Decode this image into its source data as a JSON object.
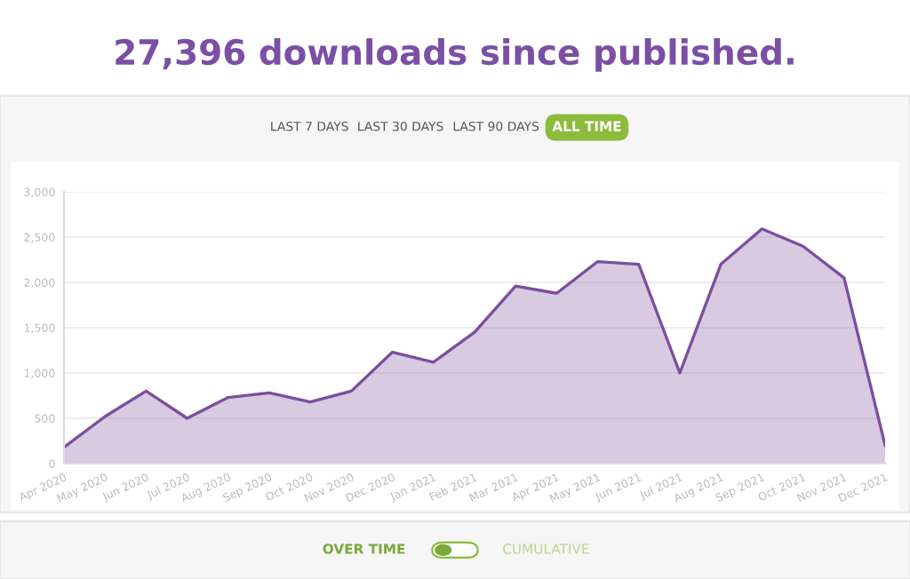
{
  "chart_data": {
    "type": "area",
    "title": "27,396 downloads since published.",
    "categories": [
      "Apr 2020",
      "May 2020",
      "Jun 2020",
      "Jul 2020",
      "Aug 2020",
      "Sep 2020",
      "Oct 2020",
      "Nov 2020",
      "Dec 2020",
      "Jan 2021",
      "Feb 2021",
      "Mar 2021",
      "Apr 2021",
      "May 2021",
      "Jun 2021",
      "Jul 2021",
      "Aug 2021",
      "Sep 2021",
      "Oct 2021",
      "Nov 2021",
      "Dec 2021"
    ],
    "series": [
      {
        "color": "#7b4f9d",
        "values": [
          180,
          520,
          800,
          500,
          730,
          780,
          680,
          800,
          1230,
          1120,
          1450,
          1960,
          1880,
          2230,
          2200,
          1000,
          2200,
          2590,
          2400,
          2050,
          200
        ]
      }
    ],
    "ylim": [
      0,
      3000
    ],
    "yticks": [
      {
        "value": 0,
        "label": "0"
      },
      {
        "value": 500,
        "label": "500"
      },
      {
        "value": 1000,
        "label": "1,000"
      },
      {
        "value": 1500,
        "label": "1,500"
      },
      {
        "value": 2000,
        "label": "2,000"
      },
      {
        "value": 2500,
        "label": "2,500"
      },
      {
        "value": 3000,
        "label": "3,000"
      }
    ],
    "grid": "y",
    "legend": false,
    "annotations": [
      "LAST 7 DAYS",
      "LAST 30 DAYS",
      "LAST 90 DAYS",
      "ALL TIME",
      "OVER TIME",
      "CUMULATIVE"
    ]
  }
}
